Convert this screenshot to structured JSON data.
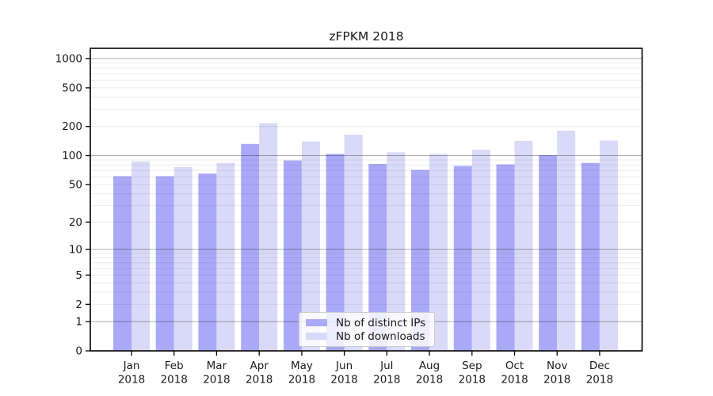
{
  "chart_data": {
    "type": "bar",
    "title": "zFPKM 2018",
    "categories": [
      "Jan",
      "Feb",
      "Mar",
      "Apr",
      "May",
      "Jun",
      "Jul",
      "Aug",
      "Sep",
      "Oct",
      "Nov",
      "Dec"
    ],
    "category_year": "2018",
    "series": [
      {
        "name": "Nb of distinct IPs",
        "color": "#a9a9f7",
        "values": [
          61,
          61,
          65,
          132,
          89,
          104,
          82,
          71,
          78,
          81,
          101,
          84
        ]
      },
      {
        "name": "Nb of downloads",
        "color": "#d9d9f8",
        "values": [
          87,
          76,
          84,
          216,
          140,
          165,
          108,
          104,
          115,
          142,
          181,
          143
        ]
      }
    ],
    "xlabel": "",
    "ylabel": "",
    "y_axis": {
      "scale": "log10(value+1)",
      "tick_values": [
        0,
        1,
        2,
        5,
        10,
        20,
        50,
        100,
        200,
        500,
        1000
      ],
      "tick_labels": [
        "0",
        "1",
        "2",
        "5",
        "10",
        "20",
        "50",
        "100",
        "200",
        "500",
        "1000"
      ],
      "range_top_value": 1200
    },
    "grid": {
      "major_values": [
        1,
        10,
        100,
        1000
      ],
      "minor_values": [
        2,
        3,
        4,
        5,
        6,
        7,
        8,
        9,
        20,
        30,
        40,
        50,
        60,
        70,
        80,
        90,
        200,
        300,
        400,
        500,
        600,
        700,
        800,
        900
      ]
    },
    "legend": {
      "position": "inside-bottom-center",
      "entries": [
        "Nb of distinct IPs",
        "Nb of downloads"
      ]
    },
    "colors": {
      "bar_ips": "#a9a9f7",
      "bar_downloads": "#d9d9f8",
      "major_grid": "#a9a9ad",
      "minor_grid": "#ebebeb",
      "axis": "#000000",
      "text": "#1a1a1a"
    }
  }
}
